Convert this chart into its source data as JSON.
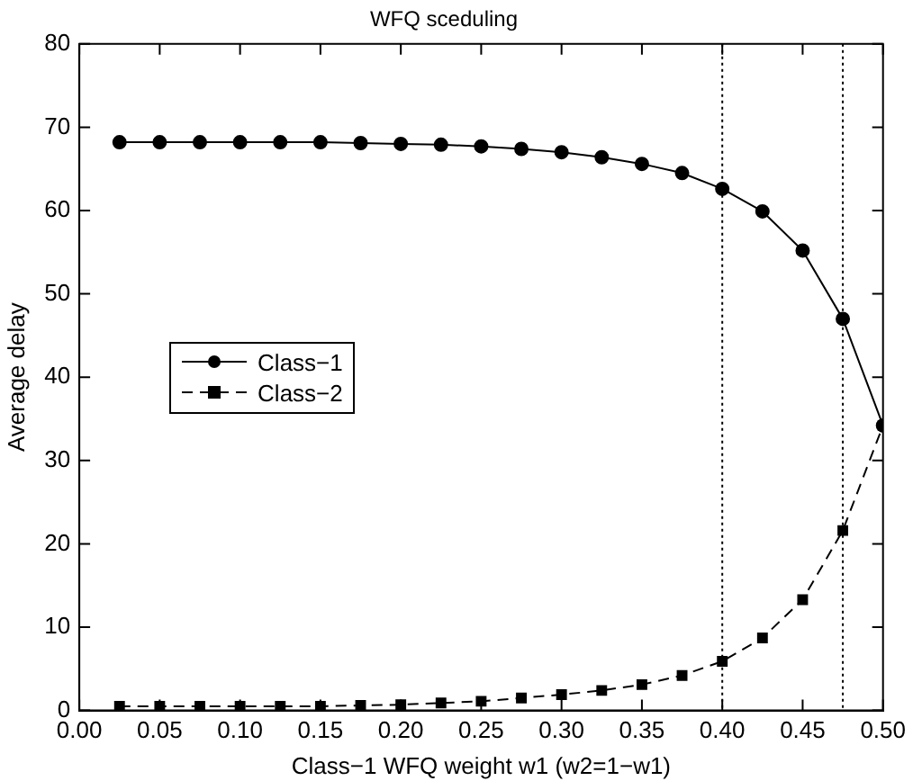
{
  "chart_data": {
    "type": "line",
    "title": "WFQ sceduling",
    "xlabel": "Class−1 WFQ weight w1 (w2=1−w1)",
    "ylabel": "Average delay",
    "x": [
      0.025,
      0.05,
      0.075,
      0.1,
      0.125,
      0.15,
      0.175,
      0.2,
      0.225,
      0.25,
      0.275,
      0.3,
      0.325,
      0.35,
      0.375,
      0.4,
      0.425,
      0.45,
      0.475,
      0.5
    ],
    "series": [
      {
        "name": "Class−1",
        "color": "#000000",
        "marker": "circle",
        "line_style": "solid",
        "values": [
          68.2,
          68.2,
          68.2,
          68.2,
          68.2,
          68.2,
          68.1,
          68.0,
          67.9,
          67.7,
          67.4,
          67.0,
          66.4,
          65.6,
          64.5,
          62.6,
          59.9,
          55.2,
          47.0,
          34.2
        ]
      },
      {
        "name": "Class−2",
        "color": "#000000",
        "marker": "square",
        "line_style": "dashed",
        "values": [
          0.5,
          0.5,
          0.5,
          0.5,
          0.5,
          0.5,
          0.6,
          0.7,
          0.9,
          1.1,
          1.5,
          1.9,
          2.4,
          3.1,
          4.2,
          5.9,
          8.7,
          13.3,
          21.6,
          34.2
        ]
      }
    ],
    "xlim": [
      0,
      0.5
    ],
    "xticks": [
      {
        "value": 0,
        "label": "0.00"
      },
      {
        "value": 0.05,
        "label": "0.05"
      },
      {
        "value": 0.1,
        "label": "0.10"
      },
      {
        "value": 0.15,
        "label": "0.15"
      },
      {
        "value": 0.2,
        "label": "0.20"
      },
      {
        "value": 0.25,
        "label": "0.25"
      },
      {
        "value": 0.3,
        "label": "0.30"
      },
      {
        "value": 0.35,
        "label": "0.35"
      },
      {
        "value": 0.4,
        "label": "0.40"
      },
      {
        "value": 0.45,
        "label": "0.45"
      },
      {
        "value": 0.5,
        "label": "0.50"
      }
    ],
    "ylim": [
      0,
      80
    ],
    "yticks": [
      0,
      10,
      20,
      30,
      40,
      50,
      60,
      70,
      80
    ],
    "ref_lines": [
      {
        "axis": "x",
        "value": 0.4,
        "line_style": "dotted",
        "color": "#000000"
      },
      {
        "axis": "x",
        "value": 0.475,
        "line_style": "dotted",
        "color": "#000000"
      }
    ],
    "grid": false,
    "legend": "left"
  }
}
